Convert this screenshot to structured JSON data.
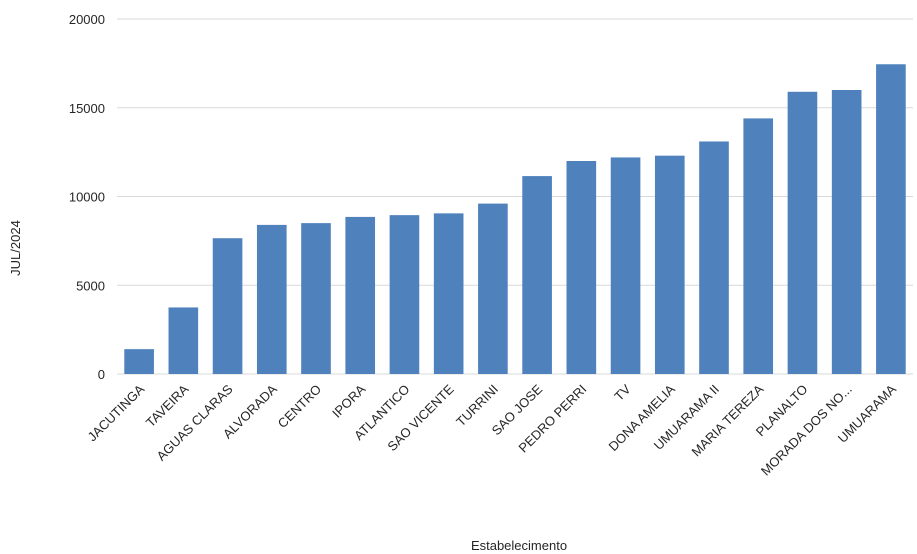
{
  "chart_data": {
    "type": "bar",
    "title": "",
    "xlabel": "Estabelecimento",
    "ylabel": "JUL/2024",
    "ylim": [
      0,
      20000
    ],
    "yticks": [
      0,
      5000,
      10000,
      15000,
      20000
    ],
    "grid": true,
    "legend": "none",
    "bar_color": "#4f81bd",
    "categories": [
      "JACUTINGA",
      "TAVEIRA",
      "AGUAS CLARAS",
      "ALVORADA",
      "CENTRO",
      "IPORA",
      "ATLANTICO",
      "SAO VICENTE",
      "TURRINI",
      "SAO JOSE",
      "PEDRO PERRI",
      "TV",
      "DONA AMELIA",
      "UMUARAMA II",
      "MARIA TEREZA",
      "PLANALTO",
      "MORADA DOS NO...",
      "UMUARAMA"
    ],
    "values": [
      1400,
      3750,
      7650,
      8400,
      8500,
      8850,
      8950,
      9050,
      9600,
      11150,
      12000,
      12200,
      12300,
      13100,
      14400,
      15900,
      16000,
      17450
    ]
  }
}
